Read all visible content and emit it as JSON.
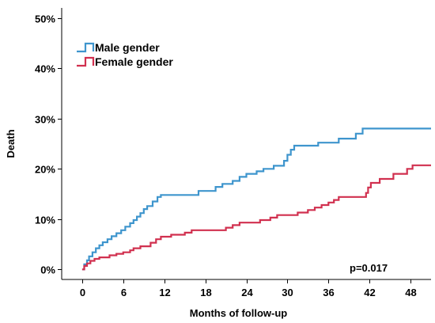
{
  "chart_data": {
    "type": "line",
    "subtype": "step",
    "title": "",
    "xlabel": "Months of follow-up",
    "ylabel": "Death",
    "xlim": [
      -3,
      51
    ],
    "ylim": [
      -2,
      52
    ],
    "x_ticks": [
      0,
      6,
      12,
      18,
      24,
      30,
      36,
      42,
      48
    ],
    "y_ticks": [
      0,
      10,
      20,
      30,
      40,
      50
    ],
    "y_tick_labels": [
      "0%",
      "10%",
      "20%",
      "30%",
      "40%",
      "50%"
    ],
    "grid": false,
    "legend_position": "top-left",
    "annotation": "p=0.017",
    "series": [
      {
        "name": "Male gender",
        "color": "#3e95cd",
        "points": [
          [
            0,
            0
          ],
          [
            0.3,
            1.0
          ],
          [
            0.7,
            1.8
          ],
          [
            1.0,
            2.6
          ],
          [
            1.5,
            3.4
          ],
          [
            2.0,
            4.2
          ],
          [
            2.5,
            4.8
          ],
          [
            3.0,
            5.4
          ],
          [
            3.7,
            6.0
          ],
          [
            4.3,
            6.6
          ],
          [
            5.0,
            7.2
          ],
          [
            5.7,
            7.8
          ],
          [
            6.3,
            8.5
          ],
          [
            7.0,
            9.2
          ],
          [
            7.5,
            9.8
          ],
          [
            8.0,
            10.5
          ],
          [
            8.5,
            11.2
          ],
          [
            9.0,
            12.0
          ],
          [
            9.5,
            12.6
          ],
          [
            10.3,
            13.5
          ],
          [
            11.0,
            14.4
          ],
          [
            11.5,
            14.8
          ],
          [
            17.0,
            15.6
          ],
          [
            19.5,
            16.4
          ],
          [
            20.5,
            17.0
          ],
          [
            22.0,
            17.6
          ],
          [
            23.0,
            18.4
          ],
          [
            24.0,
            19.0
          ],
          [
            25.5,
            19.5
          ],
          [
            26.5,
            20.0
          ],
          [
            28.0,
            20.6
          ],
          [
            29.5,
            21.6
          ],
          [
            30.0,
            22.8
          ],
          [
            30.5,
            23.8
          ],
          [
            31.0,
            24.6
          ],
          [
            34.5,
            25.2
          ],
          [
            37.5,
            26.0
          ],
          [
            40.0,
            27.0
          ],
          [
            41.0,
            28.0
          ],
          [
            51.0,
            28.0
          ]
        ]
      },
      {
        "name": "Female gender",
        "color": "#d1304f",
        "points": [
          [
            0,
            0
          ],
          [
            0.3,
            0.7
          ],
          [
            0.7,
            1.2
          ],
          [
            1.2,
            1.7
          ],
          [
            1.8,
            2.1
          ],
          [
            2.5,
            2.4
          ],
          [
            4.0,
            2.8
          ],
          [
            5.0,
            3.1
          ],
          [
            6.0,
            3.4
          ],
          [
            7.0,
            3.8
          ],
          [
            7.5,
            4.2
          ],
          [
            8.5,
            4.6
          ],
          [
            10.0,
            5.3
          ],
          [
            10.8,
            6.0
          ],
          [
            11.5,
            6.5
          ],
          [
            13.0,
            6.9
          ],
          [
            15.0,
            7.3
          ],
          [
            16.0,
            7.8
          ],
          [
            21.0,
            8.3
          ],
          [
            22.0,
            8.8
          ],
          [
            23.0,
            9.3
          ],
          [
            26.0,
            9.8
          ],
          [
            27.5,
            10.3
          ],
          [
            28.5,
            10.8
          ],
          [
            31.5,
            11.3
          ],
          [
            33.0,
            11.8
          ],
          [
            34.0,
            12.3
          ],
          [
            35.0,
            12.8
          ],
          [
            36.0,
            13.3
          ],
          [
            36.8,
            13.8
          ],
          [
            37.5,
            14.4
          ],
          [
            41.5,
            15.2
          ],
          [
            41.8,
            16.3
          ],
          [
            42.2,
            17.2
          ],
          [
            43.5,
            18.0
          ],
          [
            45.5,
            19.0
          ],
          [
            47.5,
            20.0
          ],
          [
            48.3,
            20.7
          ],
          [
            51.0,
            20.7
          ]
        ]
      }
    ]
  }
}
